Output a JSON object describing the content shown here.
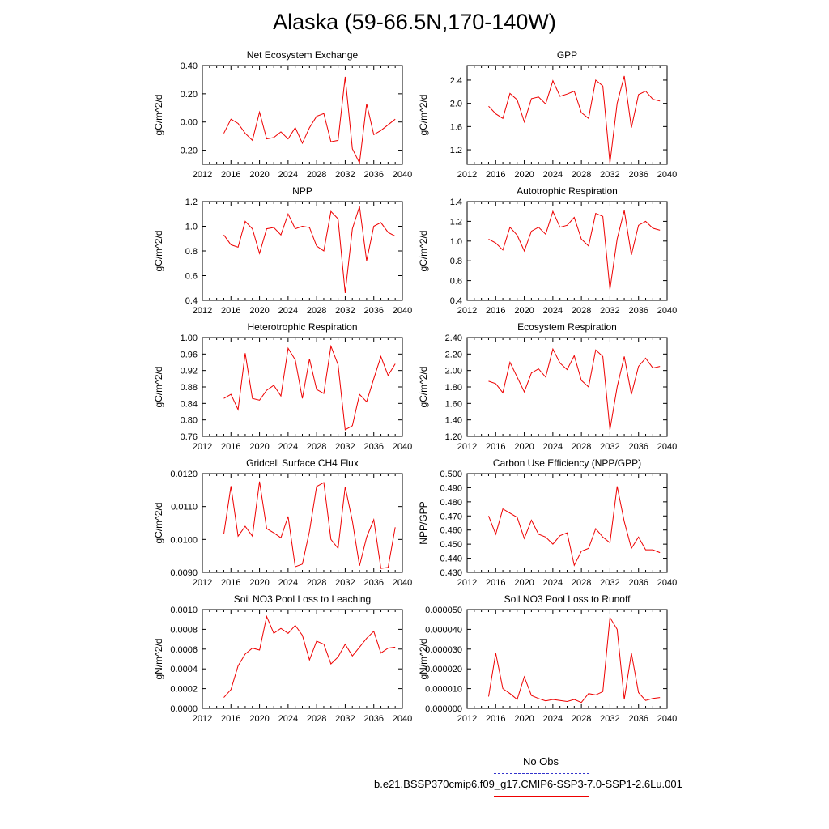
{
  "title": "Alaska (59-66.5N,170-140W)",
  "legend": {
    "obs_label": "No Obs",
    "run_label": "b.e21.BSSP370cmip6.f09_g17.CMIP6-SSP3-7.0-SSP1-2.6Lu.001",
    "obs_color": "#3333cc",
    "run_color": "#ee0000"
  },
  "chart_data": [
    {
      "type": "line",
      "title": "Net Ecosystem Exchange",
      "ylabel": "gC/m^2/d",
      "xlim": [
        2012,
        2040
      ],
      "xticks": [
        2012,
        2016,
        2020,
        2024,
        2028,
        2032,
        2036,
        2040
      ],
      "ylim": [
        -0.3,
        0.4
      ],
      "yticks": [
        "0.40",
        "0.20",
        "0.00",
        "-0.20"
      ],
      "ytick_values": [
        0.4,
        0.2,
        0.0,
        -0.2
      ],
      "x": [
        2015,
        2016,
        2017,
        2018,
        2019,
        2020,
        2021,
        2022,
        2023,
        2024,
        2025,
        2026,
        2027,
        2028,
        2029,
        2030,
        2031,
        2032,
        2033,
        2034,
        2035,
        2036,
        2037,
        2038,
        2039
      ],
      "series": [
        {
          "color": "#ee0000",
          "values": [
            -0.08,
            0.02,
            -0.01,
            -0.08,
            -0.13,
            0.07,
            -0.12,
            -0.11,
            -0.07,
            -0.12,
            -0.04,
            -0.15,
            -0.04,
            0.04,
            0.06,
            -0.14,
            -0.13,
            0.32,
            -0.19,
            -0.29,
            0.13,
            -0.09,
            -0.06,
            -0.02,
            0.02
          ]
        }
      ]
    },
    {
      "type": "line",
      "title": "GPP",
      "ylabel": "gC/m^2/d",
      "xlim": [
        2012,
        2040
      ],
      "xticks": [
        2012,
        2016,
        2020,
        2024,
        2028,
        2032,
        2036,
        2040
      ],
      "ylim": [
        0.95,
        2.65
      ],
      "yticks": [
        "2.4",
        "2.0",
        "1.6",
        "1.2"
      ],
      "ytick_values": [
        2.4,
        2.0,
        1.6,
        1.2
      ],
      "x": [
        2015,
        2016,
        2017,
        2018,
        2019,
        2020,
        2021,
        2022,
        2023,
        2024,
        2025,
        2026,
        2027,
        2028,
        2029,
        2030,
        2031,
        2032,
        2033,
        2034,
        2035,
        2036,
        2037,
        2038,
        2039
      ],
      "series": [
        {
          "color": "#ee0000",
          "values": [
            1.95,
            1.82,
            1.74,
            2.17,
            2.06,
            1.68,
            2.08,
            2.11,
            1.99,
            2.39,
            2.12,
            2.16,
            2.21,
            1.84,
            1.74,
            2.4,
            2.3,
            0.97,
            2.0,
            2.47,
            1.58,
            2.15,
            2.21,
            2.07,
            2.04
          ]
        }
      ]
    },
    {
      "type": "line",
      "title": "NPP",
      "ylabel": "gC/m^2/d",
      "xlim": [
        2012,
        2040
      ],
      "xticks": [
        2012,
        2016,
        2020,
        2024,
        2028,
        2032,
        2036,
        2040
      ],
      "ylim": [
        0.4,
        1.2
      ],
      "yticks": [
        "1.2",
        "1.0",
        "0.8",
        "0.6",
        "0.4"
      ],
      "ytick_values": [
        1.2,
        1.0,
        0.8,
        0.6,
        0.4
      ],
      "x": [
        2015,
        2016,
        2017,
        2018,
        2019,
        2020,
        2021,
        2022,
        2023,
        2024,
        2025,
        2026,
        2027,
        2028,
        2029,
        2030,
        2031,
        2032,
        2033,
        2034,
        2035,
        2036,
        2037,
        2038,
        2039
      ],
      "series": [
        {
          "color": "#ee0000",
          "values": [
            0.93,
            0.85,
            0.83,
            1.04,
            0.98,
            0.78,
            0.98,
            0.99,
            0.93,
            1.1,
            0.98,
            1.0,
            0.99,
            0.84,
            0.8,
            1.12,
            1.06,
            0.46,
            0.98,
            1.16,
            0.72,
            1.0,
            1.03,
            0.95,
            0.92
          ]
        }
      ]
    },
    {
      "type": "line",
      "title": "Autotrophic Respiration",
      "ylabel": "gC/m^2/d",
      "xlim": [
        2012,
        2040
      ],
      "xticks": [
        2012,
        2016,
        2020,
        2024,
        2028,
        2032,
        2036,
        2040
      ],
      "ylim": [
        0.4,
        1.4
      ],
      "yticks": [
        "1.4",
        "1.2",
        "1.0",
        "0.8",
        "0.6",
        "0.4"
      ],
      "ytick_values": [
        1.4,
        1.2,
        1.0,
        0.8,
        0.6,
        0.4
      ],
      "x": [
        2015,
        2016,
        2017,
        2018,
        2019,
        2020,
        2021,
        2022,
        2023,
        2024,
        2025,
        2026,
        2027,
        2028,
        2029,
        2030,
        2031,
        2032,
        2033,
        2034,
        2035,
        2036,
        2037,
        2038,
        2039
      ],
      "series": [
        {
          "color": "#ee0000",
          "values": [
            1.02,
            0.98,
            0.91,
            1.14,
            1.06,
            0.9,
            1.1,
            1.14,
            1.07,
            1.3,
            1.14,
            1.16,
            1.24,
            1.02,
            0.95,
            1.28,
            1.25,
            0.51,
            1.02,
            1.31,
            0.86,
            1.16,
            1.2,
            1.13,
            1.11
          ]
        }
      ]
    },
    {
      "type": "line",
      "title": "Heterotrophic Respiration",
      "ylabel": "gC/m^2/d",
      "xlim": [
        2012,
        2040
      ],
      "xticks": [
        2012,
        2016,
        2020,
        2024,
        2028,
        2032,
        2036,
        2040
      ],
      "ylim": [
        0.76,
        1.0
      ],
      "yticks": [
        "1.00",
        "0.96",
        "0.92",
        "0.88",
        "0.84",
        "0.80",
        "0.76"
      ],
      "ytick_values": [
        1.0,
        0.96,
        0.92,
        0.88,
        0.84,
        0.8,
        0.76
      ],
      "x": [
        2015,
        2016,
        2017,
        2018,
        2019,
        2020,
        2021,
        2022,
        2023,
        2024,
        2025,
        2026,
        2027,
        2028,
        2029,
        2030,
        2031,
        2032,
        2033,
        2034,
        2035,
        2036,
        2037,
        2038,
        2039
      ],
      "series": [
        {
          "color": "#ee0000",
          "values": [
            0.852,
            0.862,
            0.825,
            0.962,
            0.852,
            0.848,
            0.872,
            0.884,
            0.858,
            0.974,
            0.946,
            0.852,
            0.948,
            0.874,
            0.864,
            0.979,
            0.934,
            0.776,
            0.786,
            0.862,
            0.844,
            0.9,
            0.954,
            0.908,
            0.936
          ]
        }
      ]
    },
    {
      "type": "line",
      "title": "Ecosystem Respiration",
      "ylabel": "gC/m^2/d",
      "xlim": [
        2012,
        2040
      ],
      "xticks": [
        2012,
        2016,
        2020,
        2024,
        2028,
        2032,
        2036,
        2040
      ],
      "ylim": [
        1.2,
        2.4
      ],
      "yticks": [
        "2.40",
        "2.20",
        "2.00",
        "1.80",
        "1.60",
        "1.40",
        "1.20"
      ],
      "ytick_values": [
        2.4,
        2.2,
        2.0,
        1.8,
        1.6,
        1.4,
        1.2
      ],
      "x": [
        2015,
        2016,
        2017,
        2018,
        2019,
        2020,
        2021,
        2022,
        2023,
        2024,
        2025,
        2026,
        2027,
        2028,
        2029,
        2030,
        2031,
        2032,
        2033,
        2034,
        2035,
        2036,
        2037,
        2038,
        2039
      ],
      "series": [
        {
          "color": "#ee0000",
          "values": [
            1.87,
            1.84,
            1.73,
            2.1,
            1.92,
            1.74,
            1.97,
            2.02,
            1.92,
            2.26,
            2.09,
            2.01,
            2.18,
            1.88,
            1.8,
            2.25,
            2.17,
            1.28,
            1.8,
            2.17,
            1.71,
            2.05,
            2.15,
            2.03,
            2.05
          ]
        }
      ]
    },
    {
      "type": "line",
      "title": "Gridcell Surface CH4 Flux",
      "ylabel": "gC/m^2/d",
      "xlim": [
        2012,
        2040
      ],
      "xticks": [
        2012,
        2016,
        2020,
        2024,
        2028,
        2032,
        2036,
        2040
      ],
      "ylim": [
        0.009,
        0.012
      ],
      "yticks": [
        "0.0120",
        "0.0110",
        "0.0100",
        "0.0090"
      ],
      "ytick_values": [
        0.012,
        0.011,
        0.01,
        0.009
      ],
      "x": [
        2015,
        2016,
        2017,
        2018,
        2019,
        2020,
        2021,
        2022,
        2023,
        2024,
        2025,
        2026,
        2027,
        2028,
        2029,
        2030,
        2031,
        2032,
        2033,
        2034,
        2035,
        2036,
        2037,
        2038,
        2039
      ],
      "series": [
        {
          "color": "#ee0000",
          "values": [
            0.01017,
            0.01162,
            0.0101,
            0.0104,
            0.0101,
            0.01176,
            0.01033,
            0.0102,
            0.01005,
            0.0107,
            0.00917,
            0.00925,
            0.01025,
            0.01161,
            0.01173,
            0.01,
            0.00973,
            0.0116,
            0.01056,
            0.0092,
            0.01007,
            0.0106,
            0.00912,
            0.00915,
            0.01037
          ]
        }
      ]
    },
    {
      "type": "line",
      "title": "Carbon Use Efficiency (NPP/GPP)",
      "ylabel": "NPP/GPP",
      "xlim": [
        2012,
        2040
      ],
      "xticks": [
        2012,
        2016,
        2020,
        2024,
        2028,
        2032,
        2036,
        2040
      ],
      "ylim": [
        0.43,
        0.5
      ],
      "yticks": [
        "0.500",
        "0.490",
        "0.480",
        "0.470",
        "0.460",
        "0.450",
        "0.440",
        "0.430"
      ],
      "ytick_values": [
        0.5,
        0.49,
        0.48,
        0.47,
        0.46,
        0.45,
        0.44,
        0.43
      ],
      "x": [
        2015,
        2016,
        2017,
        2018,
        2019,
        2020,
        2021,
        2022,
        2023,
        2024,
        2025,
        2026,
        2027,
        2028,
        2029,
        2030,
        2031,
        2032,
        2033,
        2034,
        2035,
        2036,
        2037,
        2038,
        2039
      ],
      "series": [
        {
          "color": "#ee0000",
          "values": [
            0.47,
            0.457,
            0.475,
            0.472,
            0.469,
            0.454,
            0.467,
            0.457,
            0.455,
            0.45,
            0.456,
            0.458,
            0.435,
            0.445,
            0.447,
            0.461,
            0.455,
            0.451,
            0.491,
            0.466,
            0.447,
            0.455,
            0.446,
            0.446,
            0.444
          ]
        }
      ]
    },
    {
      "type": "line",
      "title": "Soil NO3 Pool Loss to Leaching",
      "ylabel": "gN/m^2/d",
      "xlim": [
        2012,
        2040
      ],
      "xticks": [
        2012,
        2016,
        2020,
        2024,
        2028,
        2032,
        2036,
        2040
      ],
      "ylim": [
        0,
        0.001
      ],
      "yticks": [
        "0.0010",
        "0.0008",
        "0.0006",
        "0.0004",
        "0.0002",
        "0.0000"
      ],
      "ytick_values": [
        0.001,
        0.0008,
        0.0006,
        0.0004,
        0.0002,
        0.0
      ],
      "x": [
        2015,
        2016,
        2017,
        2018,
        2019,
        2020,
        2021,
        2022,
        2023,
        2024,
        2025,
        2026,
        2027,
        2028,
        2029,
        2030,
        2031,
        2032,
        2033,
        2034,
        2035,
        2036,
        2037,
        2038,
        2039
      ],
      "series": [
        {
          "color": "#ee0000",
          "values": [
            0.00011,
            0.00019,
            0.00043,
            0.00055,
            0.00061,
            0.00059,
            0.00093,
            0.00076,
            0.00081,
            0.00076,
            0.00084,
            0.00074,
            0.00049,
            0.00068,
            0.00065,
            0.00045,
            0.00052,
            0.00065,
            0.00053,
            0.00062,
            0.00071,
            0.00078,
            0.00056,
            0.00061,
            0.00062
          ]
        }
      ]
    },
    {
      "type": "line",
      "title": "Soil NO3 Pool Loss to Runoff",
      "ylabel": "gN/m^2/d",
      "xlim": [
        2012,
        2040
      ],
      "xticks": [
        2012,
        2016,
        2020,
        2024,
        2028,
        2032,
        2036,
        2040
      ],
      "ylim": [
        0,
        5e-05
      ],
      "yticks": [
        "0.000050",
        "0.000040",
        "0.000030",
        "0.000020",
        "0.000010",
        "0.000000"
      ],
      "ytick_values": [
        5e-05,
        4e-05,
        3e-05,
        2e-05,
        1e-05,
        0.0
      ],
      "x": [
        2015,
        2016,
        2017,
        2018,
        2019,
        2020,
        2021,
        2022,
        2023,
        2024,
        2025,
        2026,
        2027,
        2028,
        2029,
        2030,
        2031,
        2032,
        2033,
        2034,
        2035,
        2036,
        2037,
        2038,
        2039
      ],
      "series": [
        {
          "color": "#ee0000",
          "values": [
            6e-06,
            2.8e-05,
            1e-05,
            7.5e-06,
            4.5e-06,
            1.6e-05,
            6.5e-06,
            5e-06,
            3.8e-06,
            4.5e-06,
            4e-06,
            3.5e-06,
            4.5e-06,
            3e-06,
            7.5e-06,
            6.8e-06,
            8.5e-06,
            4.6e-05,
            4e-05,
            4.5e-06,
            2.8e-05,
            8e-06,
            4e-06,
            5e-06,
            5.5e-06
          ]
        }
      ]
    }
  ]
}
